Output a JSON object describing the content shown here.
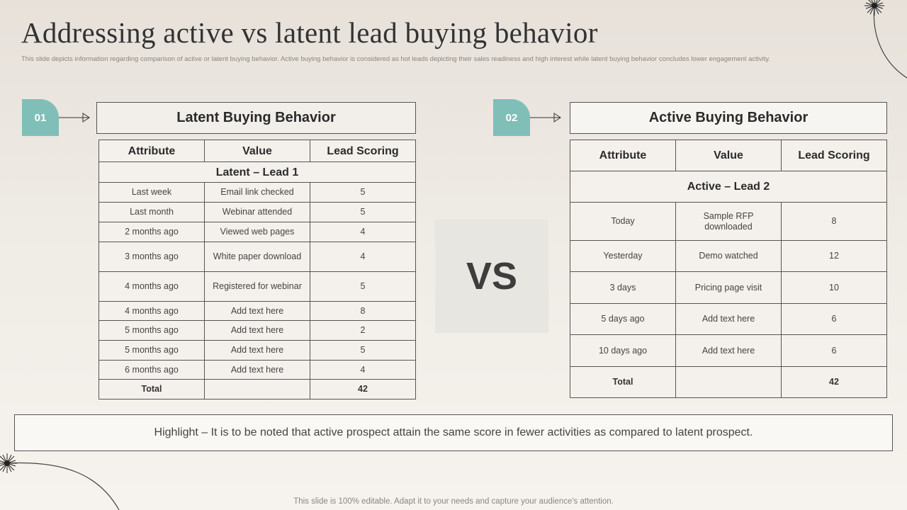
{
  "slide": {
    "title": "Addressing  active vs latent lead buying behavior",
    "subtitle": "This slide depicts information regarding comparison of active or latent buying behavior. Active buying behavior is considered as hot leads depicting their sales readiness and high interest while latent buying behavior concludes lower engagement activity.",
    "vs_label": "VS",
    "highlight": "Highlight – It is to be noted that active prospect attain the same score in fewer activities as compared to latent prospect.",
    "footer": "This slide is 100% editable. Adapt it to your needs and capture your audience's attention."
  },
  "latent": {
    "badge": "01",
    "heading": "Latent Buying Behavior",
    "headers": [
      "Attribute",
      "Value",
      "Lead Scoring"
    ],
    "group_label": "Latent – Lead 1",
    "rows": [
      [
        "Last week",
        "Email link checked",
        "5"
      ],
      [
        "Last month",
        "Webinar attended",
        "5"
      ],
      [
        "2 months ago",
        "Viewed web pages",
        "4"
      ],
      [
        "3 months ago",
        "White paper download",
        "4"
      ],
      [
        "4 months ago",
        "Registered for webinar",
        "5"
      ],
      [
        "4 months ago",
        "Add text here",
        "8"
      ],
      [
        "5 months ago",
        "Add text here",
        "2"
      ],
      [
        "5 months ago",
        "Add text here",
        "5"
      ],
      [
        "6 months ago",
        "Add text here",
        "4"
      ]
    ],
    "total_label": "Total",
    "total_value": "",
    "total_score": "42"
  },
  "active": {
    "badge": "02",
    "heading": "Active Buying Behavior",
    "headers": [
      "Attribute",
      "Value",
      "Lead Scoring"
    ],
    "group_label": "Active  – Lead 2",
    "rows": [
      [
        "Today",
        "Sample RFP downloaded",
        "8"
      ],
      [
        "Yesterday",
        "Demo watched",
        "12"
      ],
      [
        "3 days",
        "Pricing page visit",
        "10"
      ],
      [
        "5 days ago",
        "Add text here",
        "6"
      ],
      [
        "10 days ago",
        "Add text here",
        "6"
      ]
    ],
    "total_label": "Total",
    "total_value": "",
    "total_score": "42"
  },
  "colors": {
    "badge": "#7fbfb8",
    "border": "#555555"
  }
}
